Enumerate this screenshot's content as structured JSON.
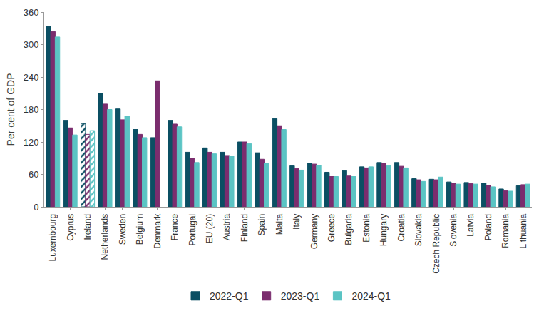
{
  "chart_data": {
    "type": "bar",
    "y_label": "Per cent of GDP",
    "categories": [
      "Luxembourg",
      "Cyprus",
      "Ireland",
      "Netherlands",
      "Sweden",
      "Belgium",
      "Denmark",
      "France",
      "Portugal",
      "EU (20)",
      "Austria",
      "Finland",
      "Spain",
      "Malta",
      "Italy",
      "Germany",
      "Greece",
      "Bulgaria",
      "Estonia",
      "Hungary",
      "Croatia",
      "Slovakia",
      "Czech Republic",
      "Slovenia",
      "Latvia",
      "Poland",
      "Romania",
      "Lithuania"
    ],
    "series": [
      {
        "name": "2022-Q1",
        "color": "#0b4f63",
        "values": [
          333,
          160,
          154,
          210,
          181,
          143,
          128,
          160,
          101,
          109,
          101,
          120,
          100,
          163,
          76,
          81,
          64,
          67,
          74,
          82,
          82,
          52,
          51,
          46,
          45,
          44,
          33,
          39
        ]
      },
      {
        "name": "2023-Q1",
        "color": "#7b2d6e",
        "values": [
          324,
          146,
          134,
          190,
          161,
          134,
          233,
          153,
          90,
          101,
          95,
          120,
          88,
          150,
          71,
          79,
          56,
          57,
          72,
          81,
          75,
          50,
          50,
          44,
          43,
          40,
          30,
          41
        ]
      },
      {
        "name": "2024-Q1",
        "color": "#5bc4c4",
        "values": [
          314,
          133,
          141,
          180,
          168,
          128,
          null,
          148,
          82,
          98,
          94,
          117,
          81,
          143,
          68,
          77,
          56,
          56,
          74,
          76,
          72,
          47,
          55,
          42,
          42,
          37,
          29,
          42
        ]
      }
    ],
    "ylim": [
      0,
      360
    ],
    "yticks": [
      0,
      60,
      120,
      180,
      240,
      300,
      360
    ],
    "grid": false,
    "legend": "bottom"
  }
}
